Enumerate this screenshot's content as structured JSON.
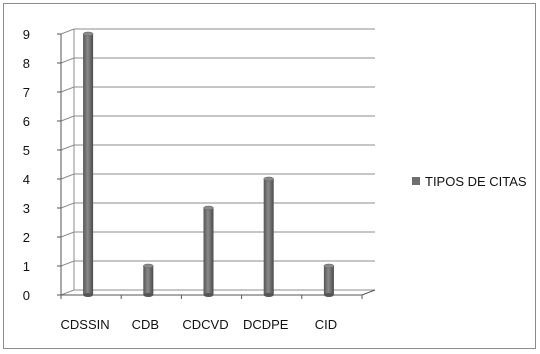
{
  "chart_data": {
    "type": "bar",
    "categories": [
      "CDSSIN",
      "CDB",
      "CDCVD",
      "DCDPE",
      "CID"
    ],
    "series": [
      {
        "name": "TIPOS DE CITAS",
        "values": [
          9,
          1,
          3,
          4,
          1
        ]
      }
    ],
    "yticks": [
      "0",
      "1",
      "2",
      "3",
      "4",
      "5",
      "6",
      "7",
      "8",
      "9"
    ],
    "ylim": [
      0,
      9
    ],
    "grid": true,
    "legend_position": "right",
    "bar_style": "3d-cylinder",
    "colors": {
      "bar": "#6e6e6e",
      "bar_top": "#8a8a8a",
      "grid": "#8c8c8c",
      "axis": "#555555"
    }
  }
}
